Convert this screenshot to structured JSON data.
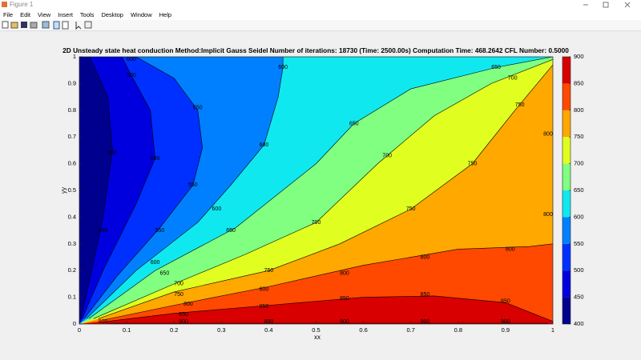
{
  "window": {
    "title": "Figure 1",
    "menu": [
      "File",
      "Edit",
      "View",
      "Insert",
      "Tools",
      "Desktop",
      "Window",
      "Help"
    ]
  },
  "chart_data": {
    "type": "contourf",
    "title": "2D Unsteady state heat conduction  Method:Implicit Gauss Seidel  Number of iterations: 18730 (Time: 2500.00s)  Computation Time: 468.2642  CFL Number: 0.5000",
    "x_label": "xx",
    "y_label": "yy",
    "xlim": [
      0,
      1
    ],
    "ylim": [
      0,
      1
    ],
    "xticks": [
      0,
      0.1,
      0.2,
      0.3,
      0.4,
      0.5,
      0.6,
      0.7,
      0.8,
      0.9,
      1
    ],
    "yticks": [
      0,
      0.1,
      0.2,
      0.3,
      0.4,
      0.5,
      0.6,
      0.7,
      0.8,
      0.9,
      1
    ],
    "clim": [
      400,
      900
    ],
    "cticks": [
      400,
      450,
      500,
      550,
      600,
      650,
      700,
      750,
      800,
      850,
      900
    ],
    "band_colors": [
      "#00008f",
      "#0000df",
      "#0030ff",
      "#0080ff",
      "#10e8f0",
      "#80ff80",
      "#e0ff20",
      "#ffa800",
      "#ff4800",
      "#d80000"
    ],
    "contours": [
      {
        "level": 450,
        "x": [
          0.003,
          0.02,
          0.05,
          0.07,
          0.06,
          0.03,
          0.02
        ],
        "y": [
          0.02,
          0.15,
          0.4,
          0.65,
          0.85,
          0.97,
          1
        ]
      },
      {
        "level": 500,
        "x": [
          0.006,
          0.05,
          0.12,
          0.16,
          0.15,
          0.11,
          0.09
        ],
        "y": [
          0.02,
          0.2,
          0.45,
          0.62,
          0.8,
          0.93,
          1
        ]
      },
      {
        "level": 550,
        "x": [
          0.01,
          0.08,
          0.17,
          0.24,
          0.26,
          0.25,
          0.2,
          0.12
        ],
        "y": [
          0.02,
          0.18,
          0.36,
          0.52,
          0.66,
          0.8,
          0.92,
          1
        ]
      },
      {
        "level": 600,
        "x": [
          0.015,
          0.12,
          0.25,
          0.32,
          0.39,
          0.42,
          0.43,
          0.43
        ],
        "y": [
          0.02,
          0.2,
          0.38,
          0.52,
          0.67,
          0.85,
          0.96,
          1
        ]
      },
      {
        "level": 650,
        "x": [
          0.02,
          0.16,
          0.33,
          0.5,
          0.58,
          0.7,
          0.88,
          1
        ],
        "y": [
          0.02,
          0.2,
          0.36,
          0.6,
          0.75,
          0.88,
          0.96,
          1
        ]
      },
      {
        "level": 700,
        "x": [
          0.03,
          0.2,
          0.35,
          0.5,
          0.63,
          0.75,
          0.87,
          1
        ],
        "y": [
          0.02,
          0.15,
          0.26,
          0.38,
          0.6,
          0.78,
          0.9,
          0.99
        ]
      },
      {
        "level": 750,
        "x": [
          0.04,
          0.2,
          0.4,
          0.55,
          0.7,
          0.83,
          0.92,
          1
        ],
        "y": [
          0.02,
          0.12,
          0.2,
          0.3,
          0.43,
          0.6,
          0.8,
          0.97
        ]
      },
      {
        "level": 800,
        "x": [
          0.05,
          0.2,
          0.4,
          0.6,
          0.8,
          0.95,
          1
        ],
        "y": [
          0.015,
          0.07,
          0.14,
          0.22,
          0.28,
          0.29,
          0.3
        ]
      },
      {
        "level": 850,
        "x": [
          0.06,
          0.2,
          0.4,
          0.6,
          0.75,
          0.9,
          1
        ],
        "y": [
          0.01,
          0.04,
          0.07,
          0.1,
          0.105,
          0.08,
          0.01
        ]
      },
      {
        "level": 900,
        "x": [
          0.06,
          0.5,
          0.99
        ],
        "y": [
          0.003,
          0.003,
          0.003
        ]
      }
    ],
    "contour_labels": [
      {
        "value": 450,
        "x": 0.07,
        "y": 0.64
      },
      {
        "value": 450,
        "x": 0.05,
        "y": 0.35
      },
      {
        "value": 500,
        "x": 0.16,
        "y": 0.62
      },
      {
        "value": 500,
        "x": 0.11,
        "y": 0.93
      },
      {
        "value": 550,
        "x": 0.25,
        "y": 0.81
      },
      {
        "value": 550,
        "x": 0.24,
        "y": 0.52
      },
      {
        "value": 550,
        "x": 0.17,
        "y": 0.35
      },
      {
        "value": 600,
        "x": 0.11,
        "y": 1.0
      },
      {
        "value": 600,
        "x": 0.43,
        "y": 0.96
      },
      {
        "value": 600,
        "x": 0.39,
        "y": 0.67
      },
      {
        "value": 600,
        "x": 0.29,
        "y": 0.43
      },
      {
        "value": 600,
        "x": 0.16,
        "y": 0.23
      },
      {
        "value": 650,
        "x": 0.88,
        "y": 0.96
      },
      {
        "value": 650,
        "x": 0.58,
        "y": 0.75
      },
      {
        "value": 650,
        "x": 0.32,
        "y": 0.35
      },
      {
        "value": 650,
        "x": 0.18,
        "y": 0.19
      },
      {
        "value": 700,
        "x": 0.915,
        "y": 0.92
      },
      {
        "value": 700,
        "x": 0.65,
        "y": 0.63
      },
      {
        "value": 700,
        "x": 0.5,
        "y": 0.38
      },
      {
        "value": 700,
        "x": 0.21,
        "y": 0.15
      },
      {
        "value": 750,
        "x": 0.93,
        "y": 0.82
      },
      {
        "value": 750,
        "x": 0.83,
        "y": 0.6
      },
      {
        "value": 750,
        "x": 0.7,
        "y": 0.43
      },
      {
        "value": 750,
        "x": 0.4,
        "y": 0.2
      },
      {
        "value": 750,
        "x": 0.21,
        "y": 0.11
      },
      {
        "value": 800,
        "x": 1.0,
        "y": 0.71
      },
      {
        "value": 800,
        "x": 1.0,
        "y": 0.41
      },
      {
        "value": 800,
        "x": 0.91,
        "y": 0.28
      },
      {
        "value": 800,
        "x": 0.73,
        "y": 0.25
      },
      {
        "value": 800,
        "x": 0.56,
        "y": 0.19
      },
      {
        "value": 800,
        "x": 0.39,
        "y": 0.13
      },
      {
        "value": 800,
        "x": 0.23,
        "y": 0.075
      },
      {
        "value": 850,
        "x": 0.9,
        "y": 0.085
      },
      {
        "value": 850,
        "x": 0.73,
        "y": 0.11
      },
      {
        "value": 850,
        "x": 0.56,
        "y": 0.095
      },
      {
        "value": 850,
        "x": 0.39,
        "y": 0.065
      },
      {
        "value": 850,
        "x": 0.22,
        "y": 0.035
      },
      {
        "value": 900,
        "x": 0.9,
        "y": 0.0
      },
      {
        "value": 900,
        "x": 0.73,
        "y": 0.0
      },
      {
        "value": 900,
        "x": 0.56,
        "y": 0.0
      },
      {
        "value": 900,
        "x": 0.4,
        "y": 0.0
      },
      {
        "value": 900,
        "x": 0.22,
        "y": 0.0
      },
      {
        "value": 900,
        "x": 0.05,
        "y": 0.0
      }
    ]
  }
}
